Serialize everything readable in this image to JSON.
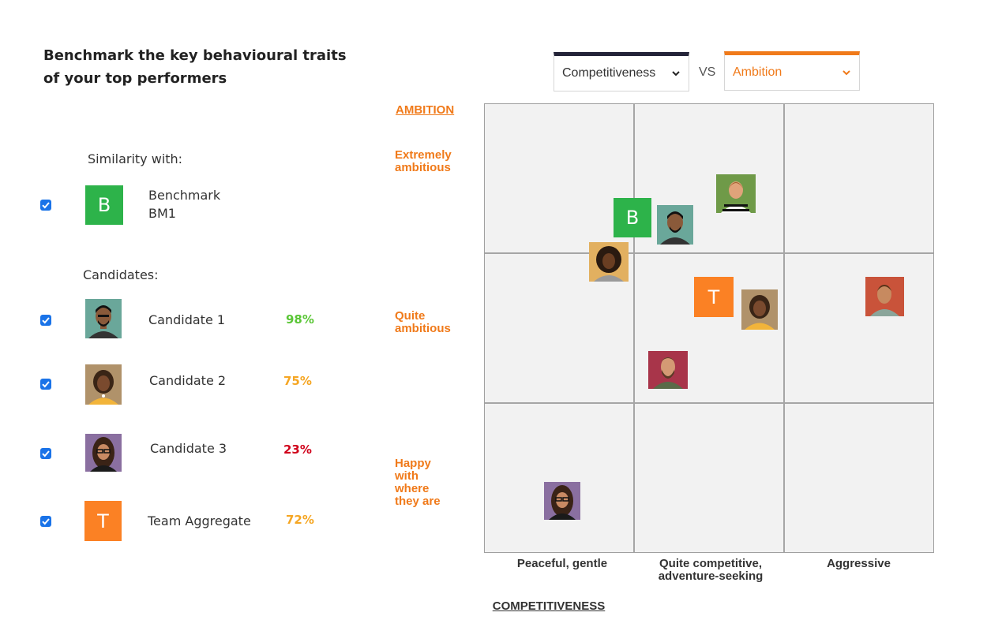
{
  "heading": "Benchmark the key behavioural traits of your top performers",
  "similarity_label": "Similarity with:",
  "benchmark": {
    "tile": "B",
    "name": "Benchmark",
    "code": "BM1",
    "checked": true
  },
  "candidates_label": "Candidates:",
  "candidates": [
    {
      "name": "Candidate 1",
      "percent": "98%",
      "checked": true,
      "color": "#5ac636"
    },
    {
      "name": "Candidate 2",
      "percent": "75%",
      "checked": true,
      "color": "#f5a623"
    },
    {
      "name": "Candidate 3",
      "percent": "23%",
      "checked": true,
      "color": "#d0021b"
    }
  ],
  "team": {
    "tile": "T",
    "name": "Team Aggregate",
    "percent": "72%",
    "checked": true,
    "color": "#f5a623"
  },
  "selects": {
    "left": {
      "value": "Competitiveness",
      "accent": "#232338"
    },
    "vs": "VS",
    "right": {
      "value": "Ambition",
      "accent": "#f07a1a"
    }
  },
  "chart": {
    "y_axis_title": "AMBITION",
    "y_labels": [
      "Extremely ambitious",
      "Quite ambitious",
      "Happy with where they are"
    ],
    "x_axis_title": "COMPETITIVENESS",
    "x_labels": [
      "Peaceful, gentle",
      "Quite competitive, adventure-seeking",
      "Aggressive"
    ]
  },
  "colors": {
    "benchmark_green": "#2db34a",
    "team_orange": "#fb8124",
    "label_orange": "#f07a1a",
    "checkbox_blue": "#1a73e8"
  },
  "icons": [
    "checkbox-checked-icon",
    "chevron-down-icon"
  ]
}
